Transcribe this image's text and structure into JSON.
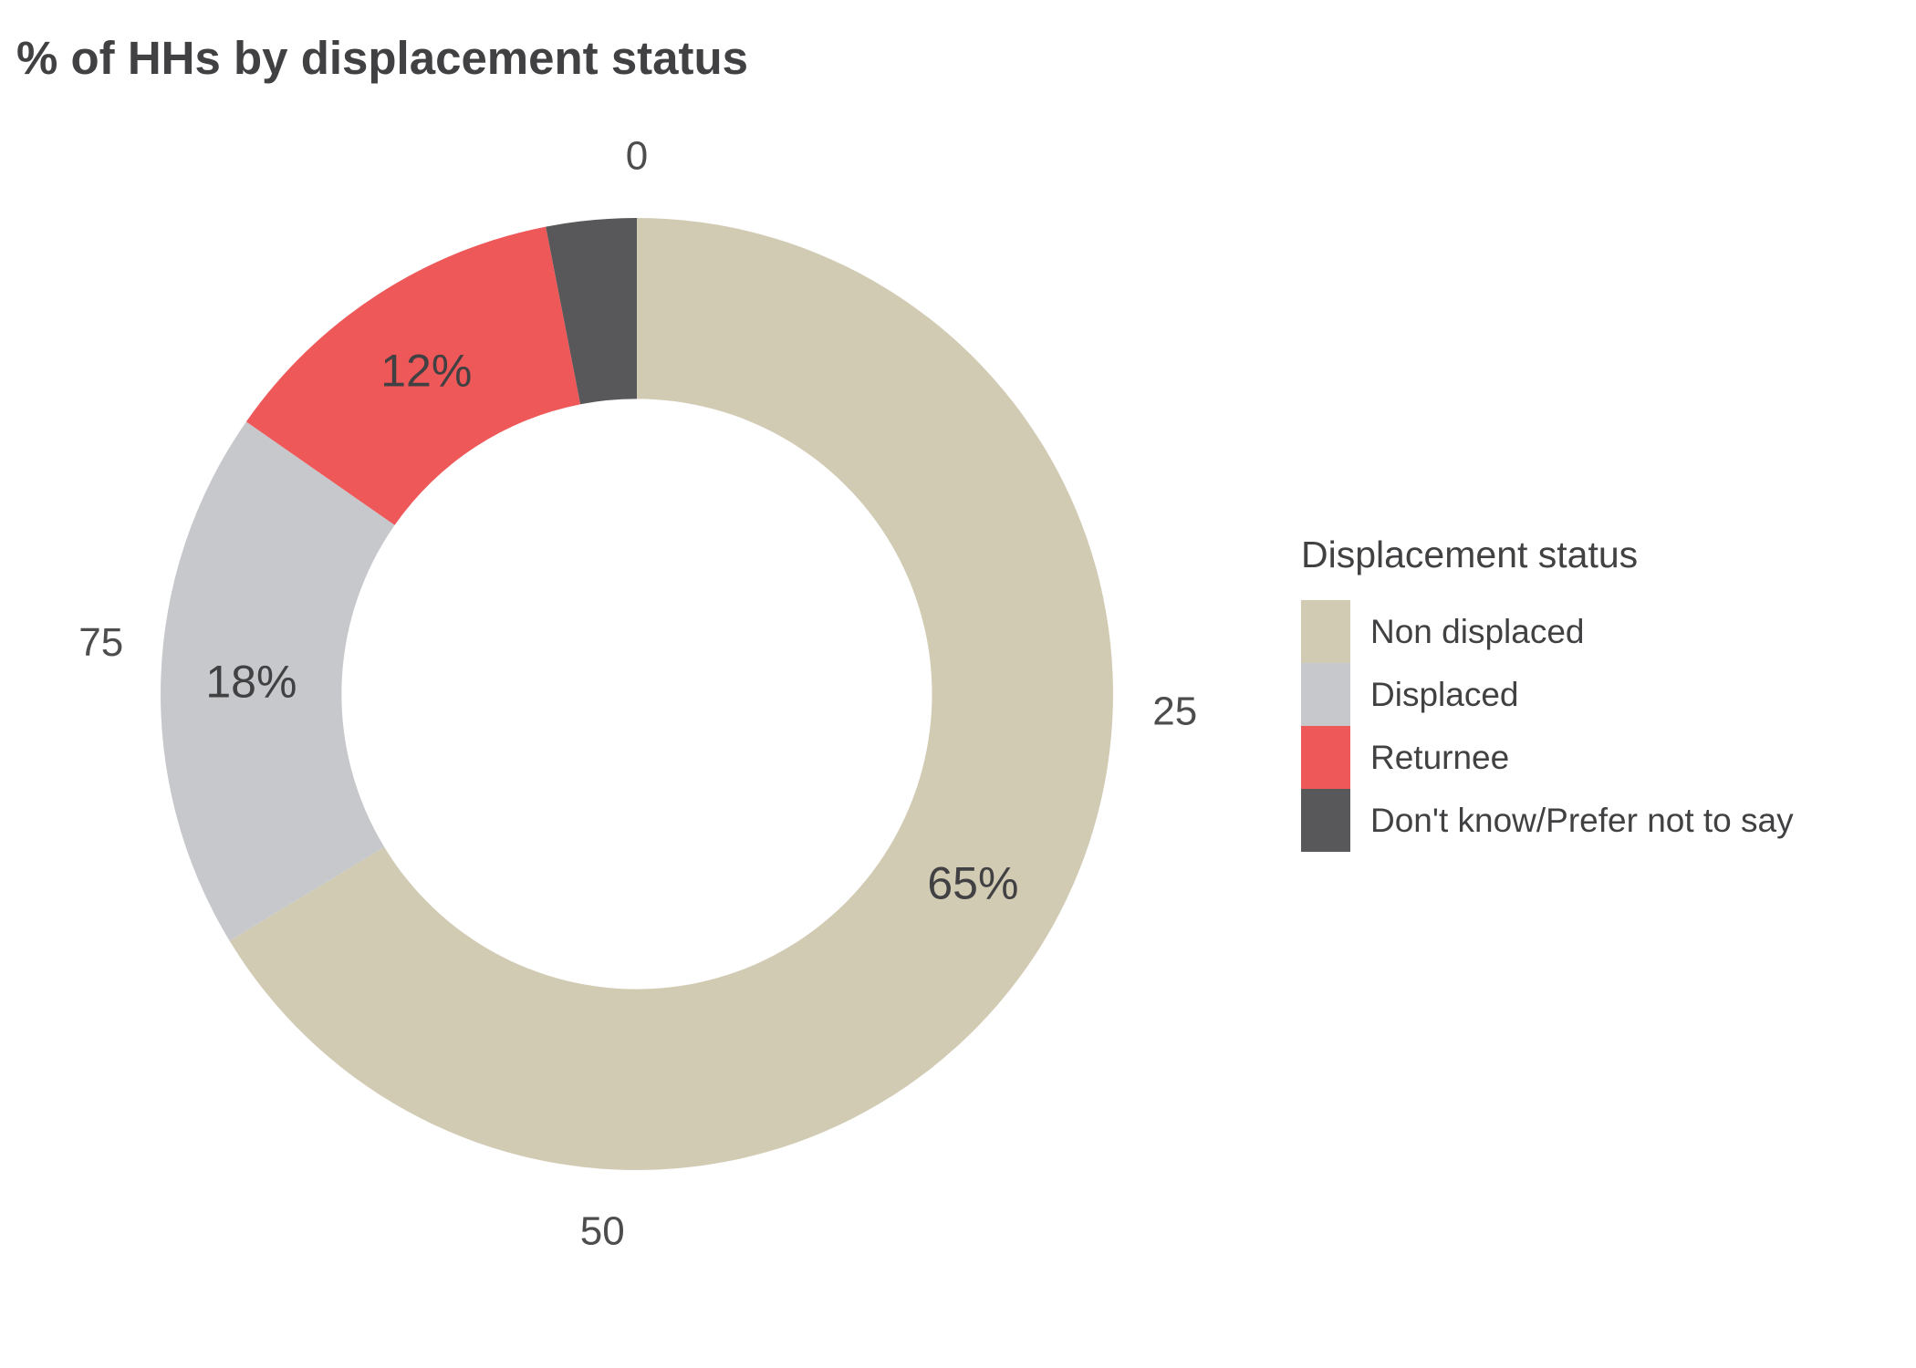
{
  "page": {
    "background_color": "#FFFFFF"
  },
  "title": "% of HHs by displacement status",
  "chart_data": {
    "type": "pie",
    "subtype": "donut",
    "title": "% of HHs by displacement status",
    "categories": [
      "Non displaced",
      "Displaced",
      "Returnee",
      "Don't know/Prefer not to say"
    ],
    "values": [
      65,
      18,
      12,
      3
    ],
    "value_labels": [
      "65%",
      "18%",
      "12%",
      ""
    ],
    "colors": [
      "#D2CBB4",
      "#C6C8CB",
      "#EE5859",
      "#58585A"
    ],
    "axis_ticks": [
      {
        "value": 0,
        "label": "0"
      },
      {
        "value": 25,
        "label": "25"
      },
      {
        "value": 50,
        "label": "50"
      },
      {
        "value": 75,
        "label": "75"
      }
    ],
    "start_angle_deg": 0,
    "direction": "clockwise",
    "donut_hole_ratio": 0.62,
    "grid": "off",
    "legend_title": "Displacement status",
    "legend_position": "right",
    "label_text_color": "#414042",
    "tick_text_color": "#4D4D4D"
  }
}
